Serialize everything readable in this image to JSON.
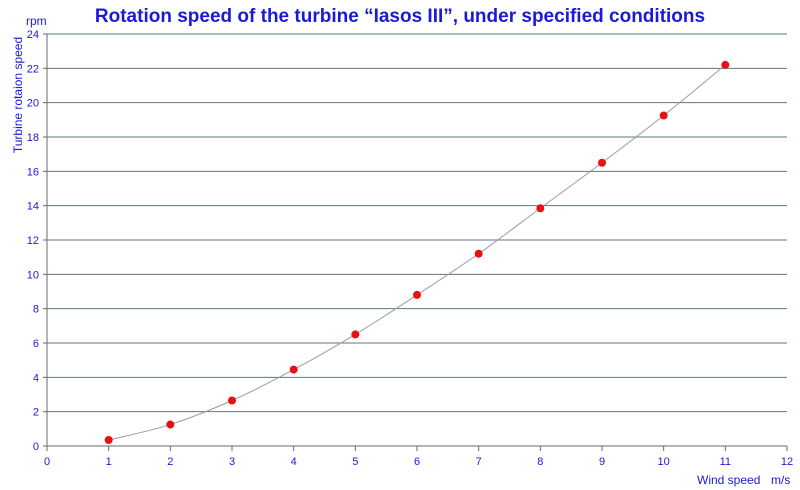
{
  "chart_data": {
    "type": "scatter",
    "title": "Rotation speed of the turbine “Iasos III”, under specified conditions",
    "xlabel": "Wind speed",
    "xunit": "m/s",
    "ylabel": "Turbine rotaion speed",
    "yunit": "rpm",
    "xlim": [
      0,
      12
    ],
    "ylim": [
      0,
      24
    ],
    "xticks": [
      0,
      1,
      2,
      3,
      4,
      5,
      6,
      7,
      8,
      9,
      10,
      11,
      12
    ],
    "yticks": [
      0,
      2,
      4,
      6,
      8,
      10,
      12,
      14,
      16,
      18,
      20,
      22,
      24
    ],
    "grid": "horizontal",
    "trendline": true,
    "x": [
      1,
      2,
      3,
      4,
      5,
      6,
      7,
      8,
      9,
      10,
      11
    ],
    "y": [
      0.35,
      1.25,
      2.65,
      4.45,
      6.5,
      8.8,
      11.2,
      13.85,
      16.5,
      19.25,
      22.2
    ],
    "colors": {
      "marker": "#e81010",
      "grid": "#5a7a80",
      "axis": "#6a6a6a",
      "text": "#1a1ad8",
      "trend": "#9a9aaa"
    }
  }
}
